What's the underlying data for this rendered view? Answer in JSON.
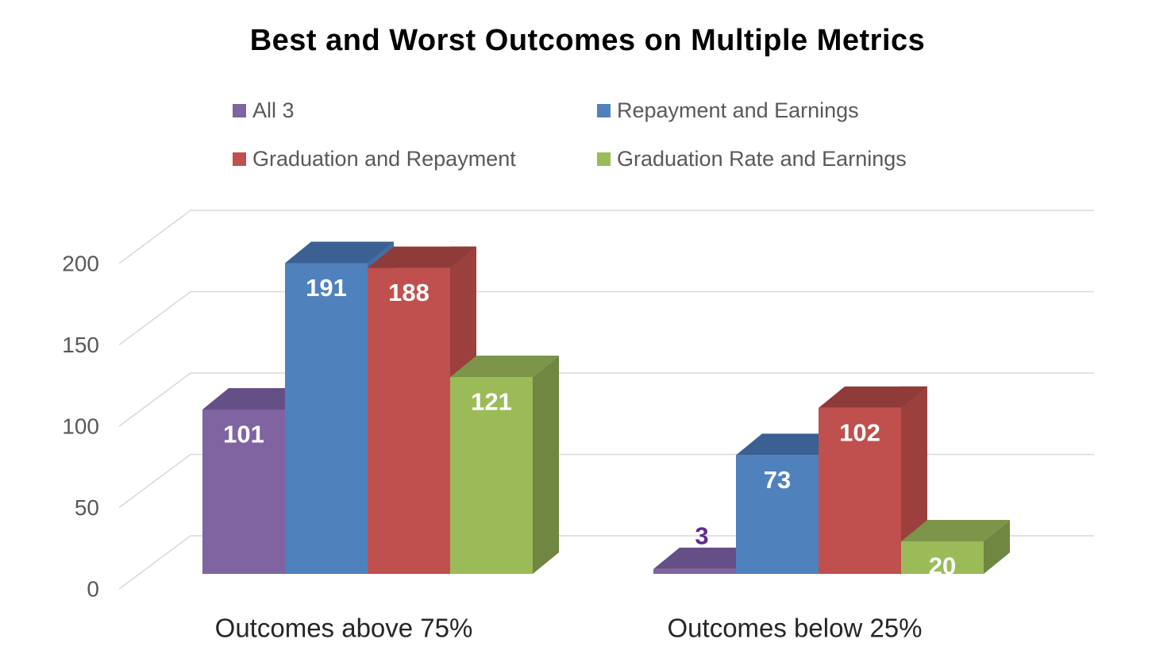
{
  "title": "Best and Worst Outcomes on Multiple Metrics",
  "chart_data": {
    "type": "bar",
    "style": "3d-clustered-column",
    "title": "Best and Worst Outcomes on Multiple Metrics",
    "categories": [
      "Outcomes above 75%",
      "Outcomes below 25%"
    ],
    "series": [
      {
        "name": "All 3",
        "values": [
          101,
          3
        ],
        "color": "#8064A2",
        "top_color": "#645087",
        "side_color": "#6B5289",
        "outside_label_color": "#5F2D91"
      },
      {
        "name": "Repayment and Earnings",
        "values": [
          191,
          73
        ],
        "color": "#4F81BD",
        "top_color": "#3A6191",
        "side_color": "#436DA3"
      },
      {
        "name": "Graduation and Repayment",
        "values": [
          188,
          102
        ],
        "color": "#C0504D",
        "top_color": "#8F3B39",
        "side_color": "#9B403D"
      },
      {
        "name": "Graduation Rate and Earnings",
        "values": [
          121,
          20
        ],
        "color": "#9BBB59",
        "top_color": "#7C954A",
        "side_color": "#6F8740"
      }
    ],
    "yticks": [
      0,
      50,
      100,
      150,
      200
    ],
    "ylim": [
      0,
      200
    ],
    "legend_position": "top",
    "gridlines": true,
    "data_labels": true,
    "colors": {
      "axis_tick_label": "#595959",
      "gridline": "#D9D9D9",
      "category_label": "#262626",
      "data_label_inside": "#FFFFFF",
      "background": "#FFFFFF",
      "title": "#000000",
      "legend_text": "#595959"
    }
  }
}
